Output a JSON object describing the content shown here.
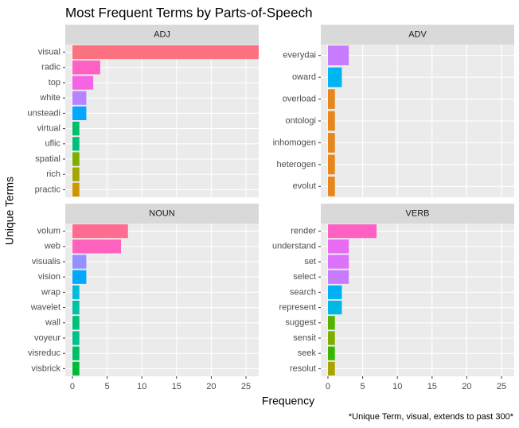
{
  "chart_data": {
    "type": "bar",
    "orientation": "horizontal",
    "title": "Most Frequent Terms by Parts-of-Speech",
    "xlabel": "Frequency",
    "ylabel": "Unique Terms",
    "caption": "*Unique Term, visual, extends to past 300*",
    "xlim": [
      -1.03,
      26.83
    ],
    "xticks": [
      0,
      5,
      10,
      15,
      20,
      25
    ],
    "grid": true,
    "facets": [
      {
        "title": "ADJ",
        "categories": [
          "visual",
          "radic",
          "top",
          "white",
          "unsteadi",
          "virtual",
          "uflic",
          "spatial",
          "rich",
          "practic"
        ],
        "values": [
          300,
          4,
          3,
          2,
          2,
          1,
          1,
          1,
          1,
          1
        ],
        "colors": [
          "#FC717F",
          "#FF61C3",
          "#F564E3",
          "#B983FF",
          "#00A9FF",
          "#00BE67",
          "#00BF7D",
          "#7CAE00",
          "#A3A500",
          "#CD9600"
        ]
      },
      {
        "title": "ADV",
        "categories": [
          "everydai",
          "oward",
          "overload",
          "ontologi",
          "inhomogen",
          "heterogen",
          "evolut"
        ],
        "values": [
          3,
          2,
          1,
          1,
          1,
          1,
          1
        ],
        "colors": [
          "#C77CFF",
          "#00B4EF",
          "#E7861B",
          "#E7861B",
          "#E7861B",
          "#E7861B",
          "#E7861B"
        ]
      },
      {
        "title": "NOUN",
        "categories": [
          "volum",
          "web",
          "visualis",
          "vision",
          "wrap",
          "wavelet",
          "wall",
          "voyeur",
          "visreduc",
          "visbrick"
        ],
        "values": [
          8,
          7,
          2,
          2,
          1,
          1,
          1,
          1,
          1,
          1
        ],
        "colors": [
          "#FF6C91",
          "#FF62BC",
          "#9590FF",
          "#00A9FF",
          "#00BCD8",
          "#00C1A3",
          "#00BF7D",
          "#00C08B",
          "#00BE67",
          "#00BA38"
        ]
      },
      {
        "title": "VERB",
        "categories": [
          "render",
          "understand",
          "set",
          "select",
          "search",
          "represent",
          "suggest",
          "sensit",
          "seek",
          "resolut"
        ],
        "values": [
          7,
          3,
          3,
          3,
          2,
          2,
          1,
          1,
          1,
          1
        ],
        "colors": [
          "#FF61C3",
          "#E76BF3",
          "#DC71FA",
          "#C77CFF",
          "#00B0F6",
          "#00B8E7",
          "#53B400",
          "#7CAE00",
          "#39B600",
          "#ABA300"
        ]
      }
    ]
  }
}
